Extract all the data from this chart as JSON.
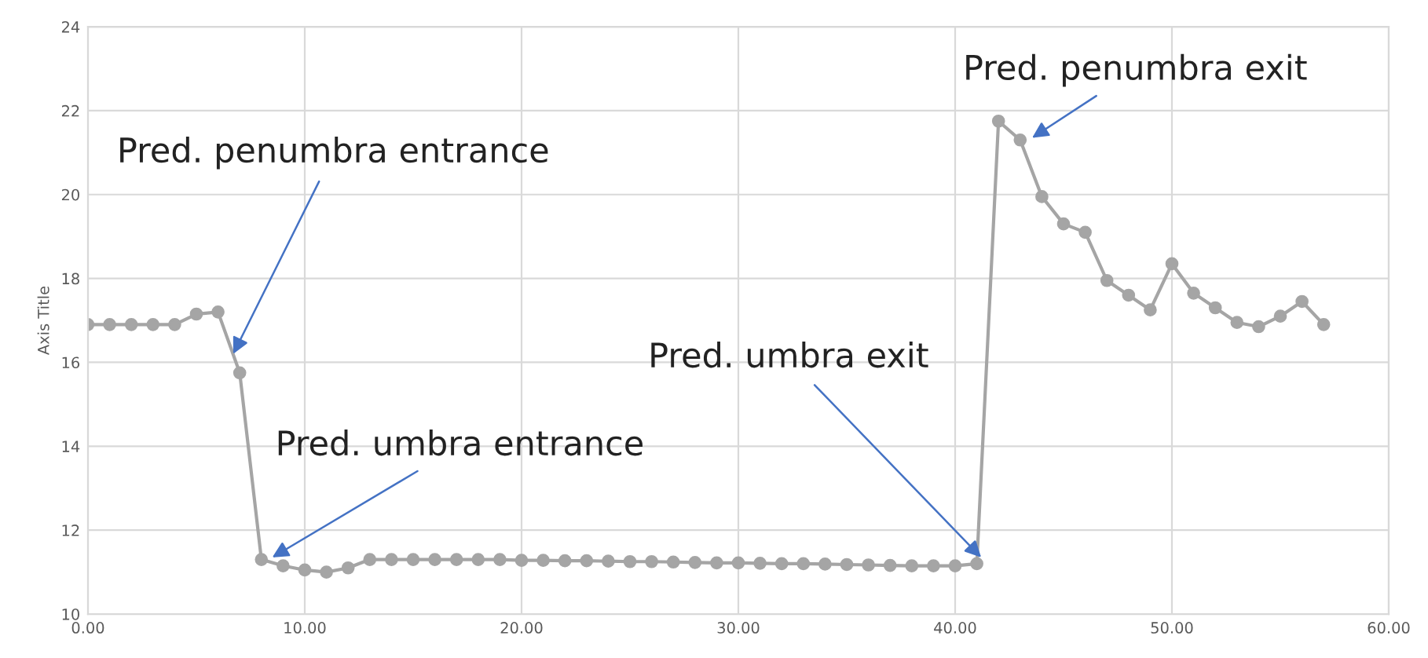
{
  "chart_data": {
    "type": "line",
    "ylabel": "Axis Title",
    "x": [
      0,
      1,
      2,
      3,
      4,
      5,
      6,
      7,
      8,
      9,
      10,
      11,
      12,
      13,
      14,
      15,
      16,
      17,
      18,
      19,
      20,
      21,
      22,
      23,
      24,
      25,
      26,
      27,
      28,
      29,
      30,
      31,
      32,
      33,
      34,
      35,
      36,
      37,
      38,
      39,
      40,
      41,
      42,
      43,
      44,
      45,
      46,
      47,
      48,
      49,
      50,
      51,
      52,
      53,
      54,
      55,
      56,
      57
    ],
    "series": [
      {
        "color": "#a5a5a5",
        "values": [
          16.9,
          16.9,
          16.9,
          16.9,
          16.9,
          17.15,
          17.2,
          15.75,
          11.3,
          11.15,
          11.05,
          11.0,
          11.1,
          11.3,
          11.3,
          11.3,
          11.3,
          11.3,
          11.3,
          11.3,
          11.28,
          11.28,
          11.27,
          11.27,
          11.26,
          11.25,
          11.25,
          11.24,
          11.23,
          11.22,
          11.22,
          11.21,
          11.2,
          11.2,
          11.19,
          11.18,
          11.17,
          11.16,
          11.15,
          11.15,
          11.15,
          11.2,
          21.75,
          21.3,
          19.95,
          19.3,
          19.1,
          17.95,
          17.6,
          17.25,
          18.35,
          17.65,
          17.3,
          16.95,
          16.85,
          17.1,
          17.45,
          16.9
        ]
      }
    ],
    "xlim": [
      0,
      60
    ],
    "xticks": [
      {
        "value": 0,
        "label": "0.00"
      },
      {
        "value": 10,
        "label": "10.00"
      },
      {
        "value": 20,
        "label": "20.00"
      },
      {
        "value": 30,
        "label": "30.00"
      },
      {
        "value": 40,
        "label": "40.00"
      },
      {
        "value": 50,
        "label": "50.00"
      },
      {
        "value": 60,
        "label": "60.00"
      }
    ],
    "ylim": [
      10,
      24
    ],
    "yticks": [
      10,
      12,
      14,
      16,
      18,
      20,
      22,
      24
    ],
    "grid": true,
    "marker": "circle",
    "line_style": "solid",
    "annotations": [
      {
        "text": "Pred. penumbra entrance",
        "x": 6.7,
        "y": 16.2
      },
      {
        "text": "Pred. umbra entrance",
        "x": 8.5,
        "y": 11.35
      },
      {
        "text": "Pred. umbra exit",
        "x": 41.2,
        "y": 11.35
      },
      {
        "text": "Pred. penumbra exit",
        "x": 43.55,
        "y": 21.35
      }
    ]
  }
}
